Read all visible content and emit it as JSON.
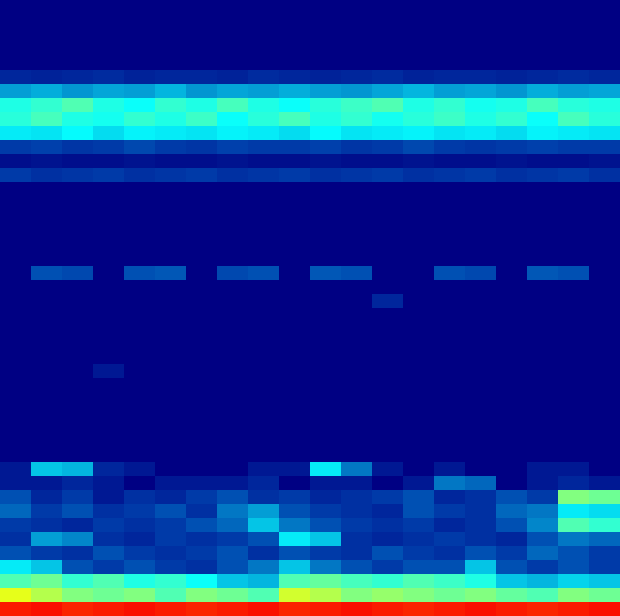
{
  "chart_data": {
    "type": "heatmap",
    "color": "Jet",
    "tick_labels": false,
    "zlim": [
      0,
      1
    ],
    "cells": [
      [
        0,
        0,
        0,
        0,
        0,
        0,
        0,
        0,
        0,
        0,
        0,
        0,
        0,
        0,
        0,
        0,
        0,
        0,
        0,
        0
      ],
      [
        0,
        0,
        0,
        0,
        0,
        0,
        0,
        0,
        0,
        0,
        0,
        0,
        0,
        0,
        0,
        0,
        0,
        0,
        0,
        0
      ],
      [
        0,
        0,
        0,
        0,
        0,
        0,
        0,
        0,
        0,
        0,
        0,
        0,
        0,
        0,
        0,
        0,
        0,
        0,
        0,
        0
      ],
      [
        0,
        0,
        0,
        0,
        0,
        0,
        0,
        0,
        0,
        0,
        0,
        0,
        0,
        0,
        0,
        0,
        0,
        0,
        0,
        0
      ],
      [
        0,
        0,
        0,
        0,
        0,
        0,
        0,
        0,
        0,
        0,
        0,
        0,
        0,
        0,
        0,
        0,
        0,
        0,
        0,
        0
      ],
      [
        0.08,
        0.07,
        0.08,
        0.09,
        0.07,
        0.08,
        0.08,
        0.07,
        0.09,
        0.08,
        0.07,
        0.08,
        0.09,
        0.07,
        0.08,
        0.08,
        0.07,
        0.08,
        0.09,
        0.08
      ],
      [
        0.25,
        0.27,
        0.24,
        0.26,
        0.25,
        0.28,
        0.24,
        0.26,
        0.25,
        0.27,
        0.25,
        0.24,
        0.26,
        0.28,
        0.25,
        0.26,
        0.24,
        0.27,
        0.25,
        0.26
      ],
      [
        0.4,
        0.42,
        0.45,
        0.4,
        0.38,
        0.42,
        0.4,
        0.44,
        0.4,
        0.38,
        0.41,
        0.43,
        0.45,
        0.4,
        0.42,
        0.39,
        0.4,
        0.44,
        0.41,
        0.4
      ],
      [
        0.41,
        0.44,
        0.4,
        0.39,
        0.42,
        0.4,
        0.43,
        0.38,
        0.41,
        0.44,
        0.4,
        0.42,
        0.39,
        0.41,
        0.43,
        0.4,
        0.42,
        0.38,
        0.44,
        0.41
      ],
      [
        0.35,
        0.34,
        0.37,
        0.33,
        0.36,
        0.35,
        0.34,
        0.36,
        0.35,
        0.33,
        0.37,
        0.34,
        0.35,
        0.36,
        0.34,
        0.35,
        0.33,
        0.36,
        0.35,
        0.34
      ],
      [
        0.12,
        0.13,
        0.11,
        0.12,
        0.14,
        0.12,
        0.11,
        0.13,
        0.12,
        0.12,
        0.13,
        0.11,
        0.12,
        0.14,
        0.12,
        0.11,
        0.12,
        0.13,
        0.12,
        0.12
      ],
      [
        0.03,
        0.04,
        0.03,
        0.03,
        0.04,
        0.03,
        0.03,
        0.04,
        0.03,
        0.03,
        0.04,
        0.03,
        0.03,
        0.04,
        0.03,
        0.03,
        0.04,
        0.03,
        0.03,
        0.04
      ],
      [
        0.12,
        0.1,
        0.11,
        0.12,
        0.1,
        0.11,
        0.12,
        0.1,
        0.11,
        0.12,
        0.1,
        0.11,
        0.12,
        0.1,
        0.11,
        0.12,
        0.1,
        0.11,
        0.12,
        0.1
      ],
      [
        0,
        0,
        0,
        0,
        0,
        0,
        0,
        0,
        0,
        0,
        0,
        0,
        0,
        0,
        0,
        0,
        0,
        0,
        0,
        0
      ],
      [
        0,
        0,
        0,
        0,
        0,
        0,
        0,
        0,
        0,
        0,
        0,
        0,
        0,
        0,
        0,
        0,
        0,
        0,
        0,
        0
      ],
      [
        0,
        0,
        0,
        0,
        0,
        0,
        0,
        0,
        0,
        0,
        0,
        0,
        0,
        0,
        0,
        0,
        0,
        0,
        0,
        0
      ],
      [
        0,
        0,
        0,
        0,
        0,
        0,
        0,
        0,
        0,
        0,
        0,
        0,
        0,
        0,
        0,
        0,
        0,
        0,
        0,
        0
      ],
      [
        0,
        0,
        0,
        0,
        0,
        0,
        0,
        0,
        0,
        0,
        0,
        0,
        0,
        0,
        0,
        0,
        0,
        0,
        0,
        0
      ],
      [
        0,
        0,
        0,
        0,
        0,
        0,
        0,
        0,
        0,
        0,
        0,
        0,
        0,
        0,
        0,
        0,
        0,
        0,
        0,
        0
      ],
      [
        0,
        0.15,
        0.14,
        0,
        0.15,
        0.16,
        0,
        0.14,
        0.15,
        0,
        0.16,
        0.15,
        0,
        0,
        0.15,
        0.14,
        0,
        0.16,
        0.15,
        0
      ],
      [
        0,
        0,
        0,
        0,
        0,
        0,
        0,
        0,
        0,
        0,
        0,
        0,
        0,
        0,
        0,
        0,
        0,
        0,
        0,
        0
      ],
      [
        0,
        0,
        0,
        0,
        0,
        0,
        0,
        0,
        0,
        0,
        0,
        0,
        0.08,
        0,
        0,
        0,
        0,
        0,
        0,
        0
      ],
      [
        0,
        0,
        0,
        0,
        0,
        0,
        0,
        0,
        0,
        0,
        0,
        0,
        0,
        0,
        0,
        0,
        0,
        0,
        0,
        0
      ],
      [
        0,
        0,
        0,
        0,
        0,
        0,
        0,
        0,
        0,
        0,
        0,
        0,
        0,
        0,
        0,
        0,
        0,
        0,
        0,
        0
      ],
      [
        0,
        0,
        0,
        0,
        0,
        0,
        0,
        0,
        0,
        0,
        0,
        0,
        0,
        0,
        0,
        0,
        0,
        0,
        0,
        0
      ],
      [
        0,
        0,
        0,
        0,
        0,
        0,
        0,
        0,
        0,
        0,
        0,
        0,
        0,
        0,
        0,
        0,
        0,
        0,
        0,
        0
      ],
      [
        0,
        0,
        0,
        0.05,
        0,
        0,
        0,
        0,
        0,
        0,
        0,
        0,
        0,
        0,
        0,
        0,
        0,
        0,
        0,
        0
      ],
      [
        0,
        0,
        0,
        0,
        0,
        0,
        0,
        0,
        0,
        0,
        0,
        0,
        0,
        0,
        0,
        0,
        0,
        0,
        0,
        0
      ],
      [
        0,
        0,
        0,
        0,
        0,
        0,
        0,
        0,
        0,
        0,
        0,
        0,
        0,
        0,
        0,
        0,
        0,
        0,
        0,
        0
      ],
      [
        0,
        0,
        0,
        0,
        0,
        0,
        0,
        0,
        0,
        0,
        0,
        0,
        0,
        0,
        0,
        0,
        0,
        0,
        0,
        0
      ],
      [
        0,
        0,
        0,
        0,
        0,
        0,
        0,
        0,
        0,
        0,
        0,
        0,
        0,
        0,
        0,
        0,
        0,
        0,
        0,
        0
      ],
      [
        0,
        0,
        0,
        0,
        0,
        0,
        0,
        0,
        0,
        0,
        0,
        0,
        0,
        0,
        0,
        0,
        0,
        0,
        0,
        0
      ],
      [
        0,
        0,
        0,
        0,
        0,
        0,
        0,
        0,
        0,
        0,
        0,
        0,
        0,
        0,
        0,
        0,
        0,
        0,
        0,
        0
      ],
      [
        0.05,
        0.3,
        0.28,
        0.08,
        0.05,
        0,
        0,
        0,
        0.05,
        0.05,
        0.35,
        0.2,
        0.05,
        0,
        0.05,
        0,
        0,
        0.05,
        0.05,
        0
      ],
      [
        0.05,
        0.05,
        0.08,
        0.05,
        0,
        0.05,
        0.05,
        0.05,
        0.08,
        0,
        0.05,
        0.05,
        0,
        0.05,
        0.2,
        0.18,
        0,
        0.05,
        0.08,
        0.05
      ],
      [
        0.15,
        0.08,
        0.12,
        0.05,
        0.1,
        0.08,
        0.12,
        0.15,
        0.1,
        0.12,
        0.08,
        0.1,
        0.12,
        0.15,
        0.08,
        0.1,
        0.15,
        0.12,
        0.5,
        0.48
      ],
      [
        0.18,
        0.12,
        0.15,
        0.1,
        0.12,
        0.15,
        0.1,
        0.2,
        0.25,
        0.15,
        0.12,
        0.1,
        0.08,
        0.15,
        0.12,
        0.1,
        0.18,
        0.2,
        0.35,
        0.33
      ],
      [
        0.12,
        0.1,
        0.08,
        0.12,
        0.1,
        0.12,
        0.15,
        0.18,
        0.3,
        0.2,
        0.15,
        0.12,
        0.1,
        0.12,
        0.08,
        0.1,
        0.15,
        0.22,
        0.45,
        0.42
      ],
      [
        0.1,
        0.25,
        0.22,
        0.1,
        0.08,
        0.12,
        0.1,
        0.12,
        0.15,
        0.35,
        0.3,
        0.1,
        0.08,
        0.1,
        0.12,
        0.1,
        0.08,
        0.15,
        0.2,
        0.18
      ],
      [
        0.15,
        0.12,
        0.1,
        0.15,
        0.12,
        0.1,
        0.12,
        0.15,
        0.1,
        0.15,
        0.12,
        0.1,
        0.15,
        0.12,
        0.1,
        0.15,
        0.12,
        0.18,
        0.15,
        0.12
      ],
      [
        0.35,
        0.3,
        0.15,
        0.12,
        0.15,
        0.12,
        0.1,
        0.15,
        0.2,
        0.3,
        0.2,
        0.15,
        0.12,
        0.15,
        0.15,
        0.3,
        0.15,
        0.12,
        0.15,
        0.12
      ],
      [
        0.45,
        0.48,
        0.42,
        0.45,
        0.4,
        0.42,
        0.38,
        0.3,
        0.28,
        0.45,
        0.47,
        0.44,
        0.42,
        0.45,
        0.43,
        0.4,
        0.3,
        0.28,
        0.32,
        0.3
      ],
      [
        0.6,
        0.55,
        0.5,
        0.48,
        0.5,
        0.45,
        0.5,
        0.48,
        0.45,
        0.58,
        0.55,
        0.5,
        0.52,
        0.5,
        0.48,
        0.5,
        0.47,
        0.45,
        0.5,
        0.48
      ],
      [
        0.85,
        0.86,
        0.84,
        0.85,
        0.86,
        0.85,
        0.84,
        0.85,
        0.86,
        0.84,
        0.85,
        0.86,
        0.85,
        0.84,
        0.85,
        0.86,
        0.85,
        0.84,
        0.85,
        0.86
      ]
    ]
  }
}
